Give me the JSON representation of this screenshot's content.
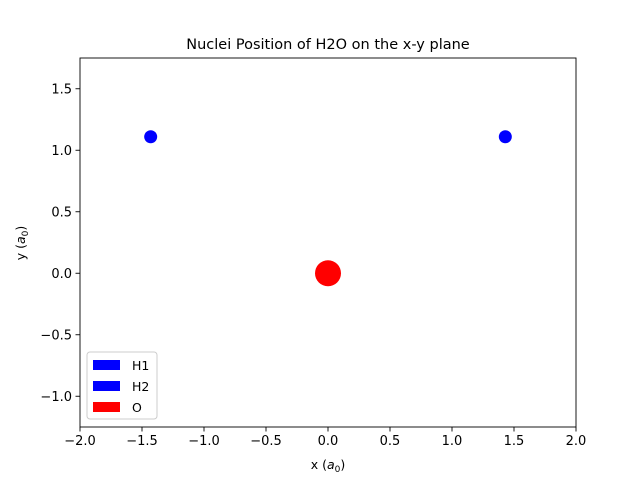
{
  "chart_data": {
    "type": "scatter",
    "title": "Nuclei Position of H2O on the x-y plane",
    "xlabel": {
      "main": "x (",
      "sym": "a",
      "sub": "0",
      "end": ")"
    },
    "ylabel": {
      "main": "y (",
      "sym": "a",
      "sub": "0",
      "end": ")"
    },
    "xlim": [
      -2.0,
      2.0
    ],
    "ylim": [
      -1.25,
      1.75
    ],
    "x_ticks": [
      -2.0,
      -1.5,
      -1.0,
      -0.5,
      0.0,
      0.5,
      1.0,
      1.5,
      2.0
    ],
    "x_tick_labels": [
      "−2.0",
      "−1.5",
      "−1.0",
      "−0.5",
      "0.0",
      "0.5",
      "1.0",
      "1.5",
      "2.0"
    ],
    "y_ticks": [
      -1.0,
      -0.5,
      0.0,
      0.5,
      1.0,
      1.5
    ],
    "y_tick_labels": [
      "−1.0",
      "−0.5",
      "0.0",
      "0.5",
      "1.0",
      "1.5"
    ],
    "grid": false,
    "legend_position": "lower-left",
    "series": [
      {
        "name": "H1",
        "color": "#0000ff",
        "x": [
          -1.43
        ],
        "y": [
          1.11
        ],
        "marker_scale": 1
      },
      {
        "name": "H2",
        "color": "#0000ff",
        "x": [
          1.43
        ],
        "y": [
          1.11
        ],
        "marker_scale": 1
      },
      {
        "name": "O",
        "color": "#ff0000",
        "x": [
          0.0
        ],
        "y": [
          0.0
        ],
        "marker_scale": 2
      }
    ]
  }
}
